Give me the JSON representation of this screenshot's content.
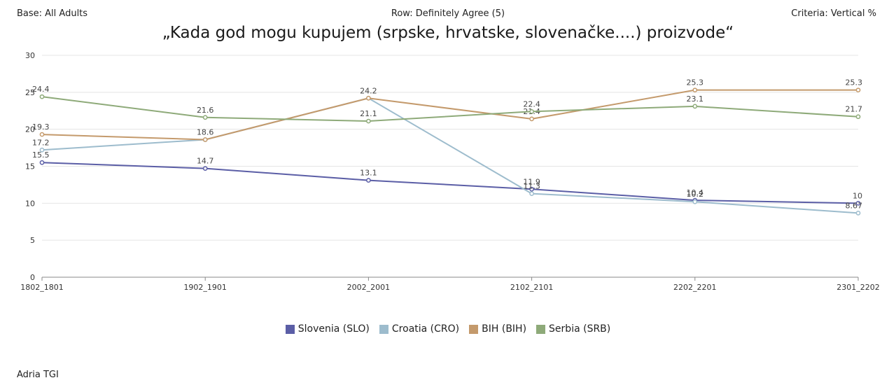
{
  "header": {
    "base": "Base: All Adults",
    "row": "Row: Definitely Agree (5)",
    "criteria": "Criteria: Vertical %"
  },
  "footer": {
    "source": "Adria TGI"
  },
  "chart_data": {
    "type": "line",
    "title": "„Kada god mogu kupujem (srpske, hrvatske, slovenačke....) proizvode“",
    "categories": [
      "1802_1801",
      "1902_1901",
      "2002_2001",
      "2102_2101",
      "2202_2201",
      "2301_2202"
    ],
    "ylim": [
      0,
      30
    ],
    "yticks": [
      0,
      5,
      10,
      15,
      20,
      25,
      30
    ],
    "grid": true,
    "legend_position": "bottom",
    "series": [
      {
        "name": "Slovenia (SLO)",
        "color": "#5b5ea6",
        "values": [
          15.5,
          14.7,
          13.1,
          11.9,
          10.4,
          10
        ],
        "labels": [
          "15.5",
          "14.7",
          "13.1",
          "11.9",
          "10.4",
          "10"
        ]
      },
      {
        "name": "Croatia (CRO)",
        "color": "#9dbccd",
        "values": [
          17.2,
          18.6,
          24.2,
          11.3,
          10.2,
          8.67
        ],
        "labels": [
          "17.2",
          "",
          "",
          "11.3",
          "10.2",
          "8.67"
        ]
      },
      {
        "name": "BIH (BIH)",
        "color": "#c49a6c",
        "values": [
          19.3,
          18.6,
          24.2,
          21.4,
          25.3,
          25.3
        ],
        "labels": [
          "19.3",
          "18.6",
          "24.2",
          "21.4",
          "25.3",
          "25.3"
        ]
      },
      {
        "name": "Serbia (SRB)",
        "color": "#8eaa79",
        "values": [
          24.4,
          21.6,
          21.1,
          22.4,
          23.1,
          21.7
        ],
        "labels": [
          "24.4",
          "21.6",
          "21.1",
          "22.4",
          "23.1",
          "21.7"
        ]
      }
    ]
  }
}
